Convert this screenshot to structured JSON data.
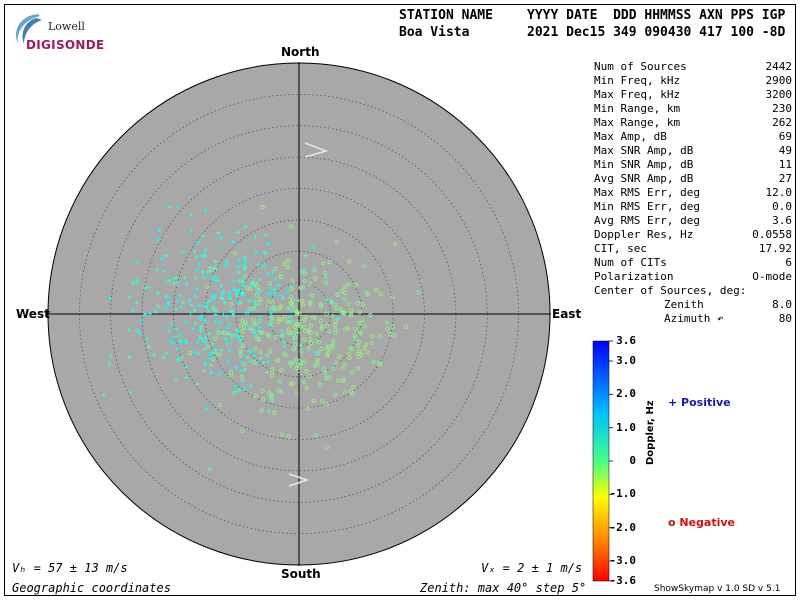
{
  "header": {
    "label1": "STATION NAME",
    "value1": "Boa Vista",
    "label2": "YYYY DATE  DDD HHMMSS AXN PPS IGP",
    "value2": "2021 Dec15 349 090430 417 100 -8D"
  },
  "logo": {
    "lowell": "Lowell",
    "digisonde": "DIGISONDE"
  },
  "directions": {
    "north": "North",
    "south": "South",
    "east": "East",
    "west": "West"
  },
  "stats": [
    {
      "label": "Num of Sources",
      "value": "2442"
    },
    {
      "label": "Min Freq, kHz",
      "value": "2900"
    },
    {
      "label": "Max Freq, kHz",
      "value": "3200"
    },
    {
      "label": "Min Range, km",
      "value": "230"
    },
    {
      "label": "Max Range, km",
      "value": "262"
    },
    {
      "label": "Max Amp, dB",
      "value": "69"
    },
    {
      "label": "Max SNR Amp, dB",
      "value": "49"
    },
    {
      "label": "Min SNR Amp, dB",
      "value": "11"
    },
    {
      "label": "Avg SNR Amp, dB",
      "value": "27"
    },
    {
      "label": "Max RMS Err, deg",
      "value": "12.0"
    },
    {
      "label": "Min RMS Err, deg",
      "value": "0.0"
    },
    {
      "label": "Avg RMS Err, deg",
      "value": "3.6"
    },
    {
      "label": "Doppler Res, Hz",
      "value": "0.0558"
    },
    {
      "label": "CIT, sec",
      "value": "17.92"
    },
    {
      "label": "Num of CITs",
      "value": "6"
    },
    {
      "label": "Polarization",
      "value": "O-mode"
    },
    {
      "label": "Center of Sources, deg:",
      "value": ""
    }
  ],
  "center": [
    {
      "label": "Zenith",
      "value": "8.0"
    },
    {
      "label": "Azimuth ↶",
      "value": "80"
    }
  ],
  "colorbar": {
    "labels": [
      "3.6",
      "3.0",
      "2.0",
      "1.0",
      "0",
      "-1.0",
      "-2.0",
      "-3.0",
      "-3.6"
    ],
    "values": [
      3.6,
      3.0,
      2.0,
      1.0,
      0,
      -1.0,
      -2.0,
      -3.0,
      -3.6
    ],
    "title": "Doppler, Hz",
    "positive_label": "+ Positive",
    "negative_label": "o Negative"
  },
  "footer": {
    "vh": "Vₕ = 57 ± 13 m/s",
    "vz": "Vₓ = 2 ± 1 m/s",
    "coords": "Geographic coordinates",
    "zenith": "Zenith: max 40°  step 5°",
    "version": "ShowSkymap v 1.0   SD v 5.1"
  },
  "plot": {
    "zenith_max_deg": 40,
    "zenith_step_deg": 5,
    "center_zenith_deg": 8.0,
    "center_azimuth_deg": 80,
    "colors": {
      "disk": "#a8a8a8",
      "ring": "#555555"
    }
  }
}
